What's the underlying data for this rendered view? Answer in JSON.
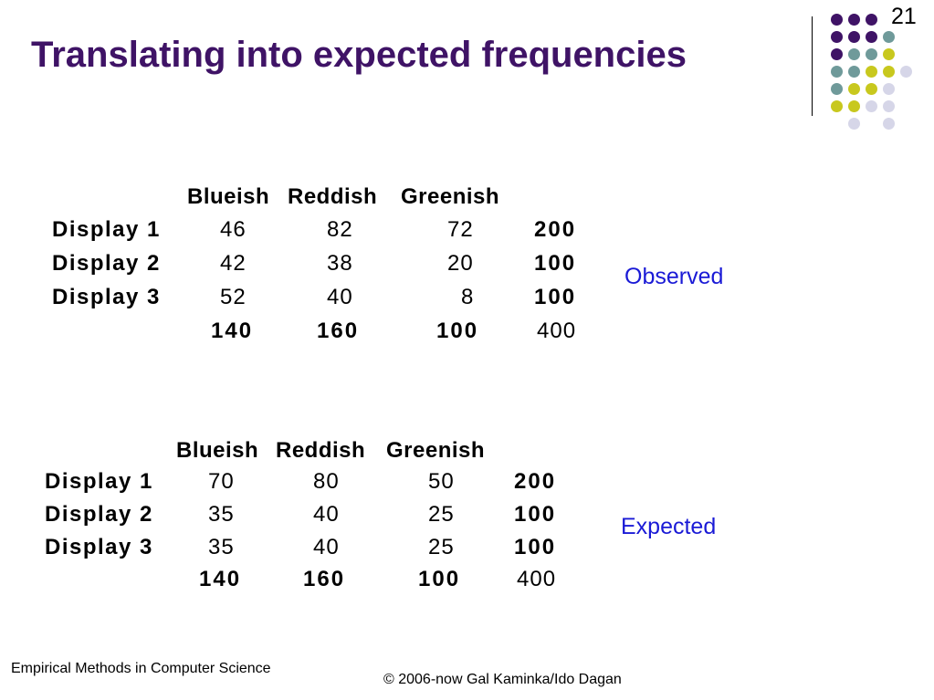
{
  "slide": {
    "title": "Translating into expected frequencies",
    "number": "21"
  },
  "colors": {
    "title": "#3f1366",
    "note": "#1a1ad6",
    "dot_purple": "#3f1366",
    "dot_teal": "#6f9a9a",
    "dot_yellow": "#c8c81e",
    "dot_lavender": "#d6d6e8"
  },
  "observed": {
    "label": "Observed",
    "headers": [
      "Blueish",
      "Reddish",
      "Greenish"
    ],
    "rows": [
      {
        "label": "Display 1",
        "values": [
          "46",
          "82",
          "72"
        ],
        "total": "200"
      },
      {
        "label": "Display 2",
        "values": [
          "42",
          "38",
          "20"
        ],
        "total": "100"
      },
      {
        "label": "Display 3",
        "values": [
          "52",
          "40",
          "8"
        ],
        "total": "100"
      }
    ],
    "col_totals": [
      "140",
      "160",
      "100"
    ],
    "grand_total": "400"
  },
  "expected": {
    "label": "Expected",
    "headers": [
      "Blueish",
      "Reddish",
      "Greenish"
    ],
    "rows": [
      {
        "label": "Display 1",
        "values": [
          "70",
          "80",
          "50"
        ],
        "total": "200"
      },
      {
        "label": "Display 2",
        "values": [
          "35",
          "40",
          "25"
        ],
        "total": "100"
      },
      {
        "label": "Display 3",
        "values": [
          "35",
          "40",
          "25"
        ],
        "total": "100"
      }
    ],
    "col_totals": [
      "140",
      "160",
      "100"
    ],
    "grand_total": "400"
  },
  "footer": {
    "left": "Empirical Methods in Computer Science",
    "right": "© 2006-now  Gal Kaminka/Ido Dagan"
  }
}
